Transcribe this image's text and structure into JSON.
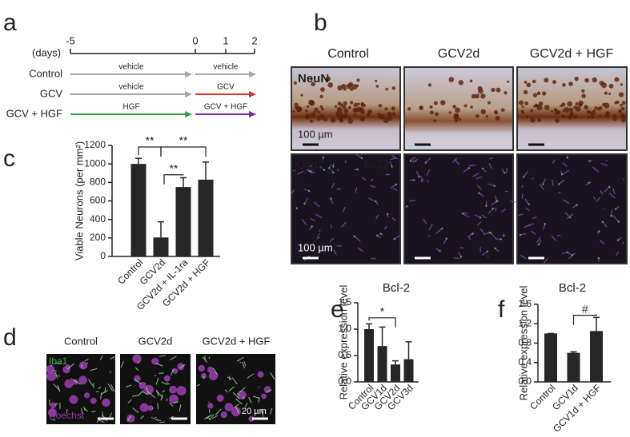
{
  "panel_labels": [
    "a",
    "b",
    "c",
    "d",
    "e",
    "f"
  ],
  "timeline": {
    "unit": "(days)",
    "ticks": [
      "-5",
      "0",
      "1",
      "2"
    ],
    "rows": [
      {
        "label": "Control",
        "segments": [
          {
            "text": "vehicle",
            "color": "#a6a6a6"
          },
          {
            "text": "vehicle",
            "color": "#a6a6a6"
          }
        ]
      },
      {
        "label": "GCV",
        "segments": [
          {
            "text": "vehicle",
            "color": "#a6a6a6"
          },
          {
            "text": "GCV",
            "color": "#e0302a"
          }
        ]
      },
      {
        "label": "GCV + HGF",
        "segments": [
          {
            "text": "HGF",
            "color": "#2aa84a"
          },
          {
            "text": "GCV + HGF",
            "color": "#7b2c9a"
          }
        ]
      }
    ]
  },
  "micrographs_b": {
    "columns": [
      "Control",
      "GCV2d",
      "GCV2d + HGF"
    ],
    "stain_top": "NeuN",
    "stains_bottom": [
      "Olig2",
      "NG2"
    ],
    "scale_bars": [
      "100 µm",
      "100 µm"
    ]
  },
  "micrographs_d": {
    "columns": [
      "Control",
      "GCV2d",
      "GCV2d + HGF"
    ],
    "stains": [
      "Iba1",
      "Hoechst"
    ],
    "scale_bar": "20 µm"
  },
  "chart_data": [
    {
      "type": "bar",
      "ylabel": "Viable Neurons (per mm²)",
      "categories": [
        "Control",
        "GCV2d",
        "GCV2d + IL-1ra",
        "GCV2d + HGF"
      ],
      "values": [
        1000,
        205,
        750,
        830
      ],
      "errors": [
        60,
        170,
        100,
        190
      ],
      "color": "#262626",
      "ylim": [
        0,
        1200
      ],
      "yticks": [
        0,
        200,
        400,
        600,
        800,
        1000,
        1200
      ],
      "annotations": [
        "**",
        "**",
        "**"
      ]
    },
    {
      "type": "bar",
      "title": "Bcl-2",
      "ylabel": "Relative expression level",
      "categories": [
        "Control",
        "GCV1d",
        "GCV2d",
        "GCV3d"
      ],
      "values": [
        1.0,
        0.68,
        0.33,
        0.43
      ],
      "errors": [
        0.1,
        0.36,
        0.07,
        0.33
      ],
      "color": "#262626",
      "ylim": [
        0,
        1.5
      ],
      "yticks": [
        {
          "value": 0,
          "label": "0.0"
        },
        0.5,
        {
          "value": 1,
          "label": "1.0"
        },
        1.5
      ],
      "annotations": [
        "*"
      ]
    },
    {
      "type": "bar",
      "title": "Bcl-2",
      "ylabel": "Relative expression level",
      "categories": [
        "Control",
        "GCV1d",
        "GCV1d + HGF"
      ],
      "values": [
        1.0,
        0.6,
        1.05
      ],
      "errors": [
        0,
        0.02,
        0.28
      ],
      "color": "#262626",
      "ylim": [
        0,
        1.6
      ],
      "yticks": [
        {
          "value": 0,
          "label": "0.0"
        },
        0.4,
        0.8,
        1.2,
        1.6
      ],
      "annotations": [
        "#"
      ]
    }
  ]
}
